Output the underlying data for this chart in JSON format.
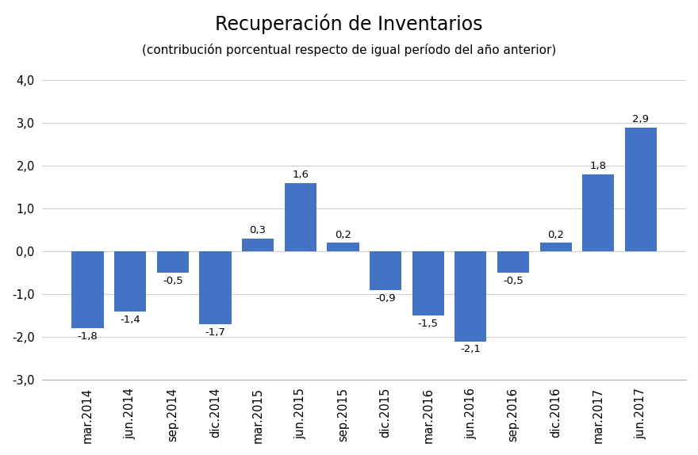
{
  "title": "Recuperación de Inventarios",
  "subtitle": "(contribución porcentual respecto de igual período del año anterior)",
  "categories": [
    "mar.2014",
    "jun.2014",
    "sep.2014",
    "dic.2014",
    "mar.2015",
    "jun.2015",
    "sep.2015",
    "dic.2015",
    "mar.2016",
    "jun.2016",
    "sep.2016",
    "dic.2016",
    "mar.2017",
    "jun.2017"
  ],
  "values": [
    -1.8,
    -1.4,
    -0.5,
    -1.7,
    0.3,
    1.6,
    0.2,
    -0.9,
    -1.5,
    -2.1,
    -0.5,
    0.2,
    1.8,
    2.9
  ],
  "bar_color": "#4472C4",
  "ylim": [
    -3.0,
    4.0
  ],
  "yticks": [
    -3.0,
    -2.0,
    -1.0,
    0.0,
    1.0,
    2.0,
    3.0,
    4.0
  ],
  "ytick_labels": [
    "-3,0",
    "-2,0",
    "-1,0",
    "0,0",
    "1,0",
    "2,0",
    "3,0",
    "4,0"
  ],
  "background_color": "#ffffff",
  "title_fontsize": 17,
  "subtitle_fontsize": 11,
  "label_fontsize": 9.5,
  "tick_fontsize": 10.5,
  "bar_width": 0.75,
  "grid_color": "#d0d0d0",
  "spine_color": "#b0b0b0"
}
